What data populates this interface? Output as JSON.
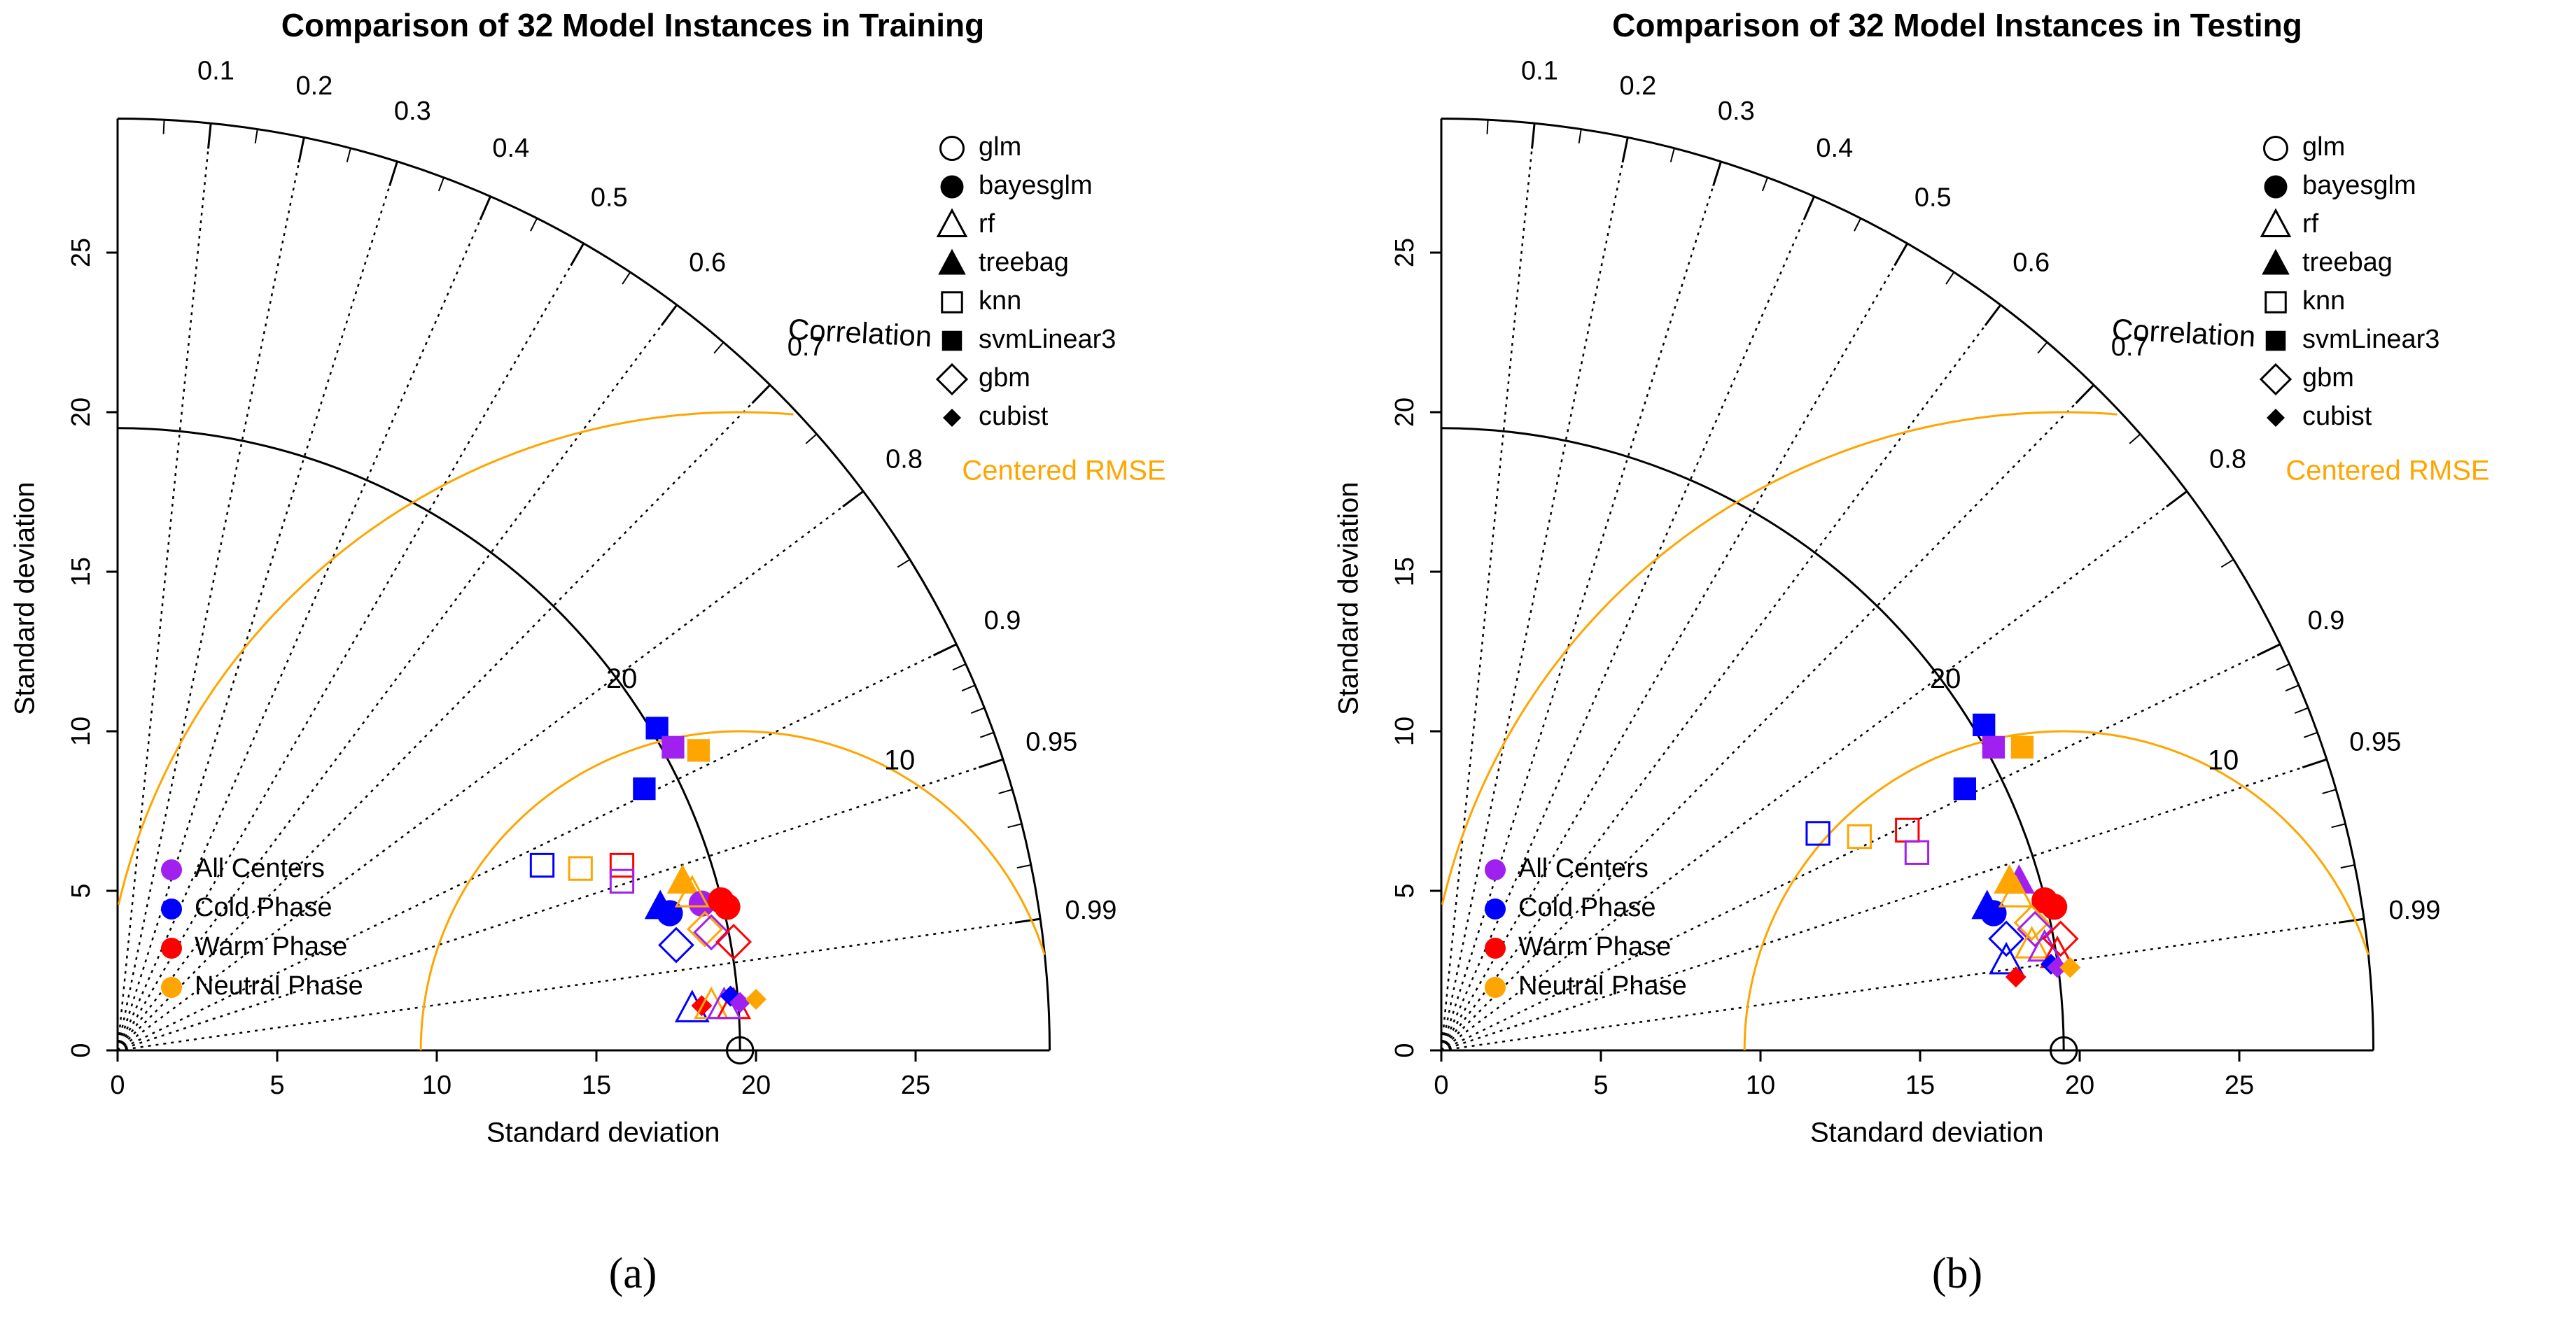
{
  "panel_labels": [
    "(a)",
    "(b)"
  ],
  "shape_legend": [
    {
      "label": "glm",
      "shape": "circle-open"
    },
    {
      "label": "bayesglm",
      "shape": "circle-filled"
    },
    {
      "label": "rf",
      "shape": "triangle-open"
    },
    {
      "label": "treebag",
      "shape": "triangle-filled"
    },
    {
      "label": "knn",
      "shape": "square-open"
    },
    {
      "label": "svmLinear3",
      "shape": "square-filled"
    },
    {
      "label": "gbm",
      "shape": "diamond-open"
    },
    {
      "label": "cubist",
      "shape": "diamond-filled-small"
    }
  ],
  "group_legend": [
    {
      "label": "All Centers",
      "color": "#A020F0"
    },
    {
      "label": "Cold Phase",
      "color": "#0000FF"
    },
    {
      "label": "Warm Phase",
      "color": "#FF0000"
    },
    {
      "label": "Neutral Phase",
      "color": "#FFA500"
    }
  ],
  "colors": {
    "All Centers": "#A020F0",
    "Cold Phase": "#0000FF",
    "Warm Phase": "#FF0000",
    "Neutral Phase": "#FFA500",
    "rmse": "#FFA500",
    "axis": "#000000"
  },
  "chart_data": [
    {
      "type": "scatter",
      "subtype": "taylor-diagram",
      "title": "Comparison of 32 Model Instances in Training",
      "xlabel": "Standard deviation",
      "ylabel": "Standard deviation",
      "correlation_label": "Correlation",
      "rmse_label": "Centered RMSE",
      "sd_max": 29.2,
      "reference_sd": 19.5,
      "x_ticks": [
        0,
        5,
        10,
        15,
        20,
        25
      ],
      "y_ticks": [
        0,
        5,
        10,
        15,
        20,
        25
      ],
      "correlation_ticks": [
        "0.1",
        "0.2",
        "0.3",
        "0.4",
        "0.5",
        "0.6",
        "0.7",
        "0.8",
        "0.9",
        "0.95",
        "0.99"
      ],
      "sd_arc_labels": [
        "20"
      ],
      "rmse_arc_labels": [
        "10"
      ],
      "points": [
        {
          "model": "glm",
          "group": "Reference",
          "x": 19.5,
          "y": 0.0
        },
        {
          "model": "svmLinear3",
          "group": "Cold Phase",
          "x": 16.9,
          "y": 10.1
        },
        {
          "model": "svmLinear3",
          "group": "All Centers",
          "x": 17.4,
          "y": 9.5
        },
        {
          "model": "svmLinear3",
          "group": "Neutral Phase",
          "x": 18.2,
          "y": 9.4
        },
        {
          "model": "svmLinear3",
          "group": "Cold Phase",
          "x": 16.5,
          "y": 8.2
        },
        {
          "model": "knn",
          "group": "Cold Phase",
          "x": 13.3,
          "y": 5.8
        },
        {
          "model": "knn",
          "group": "Neutral Phase",
          "x": 14.5,
          "y": 5.7
        },
        {
          "model": "knn",
          "group": "Warm Phase",
          "x": 15.8,
          "y": 5.8
        },
        {
          "model": "knn",
          "group": "All Centers",
          "x": 15.8,
          "y": 5.3
        },
        {
          "model": "treebag",
          "group": "Neutral Phase",
          "x": 17.7,
          "y": 5.3
        },
        {
          "model": "treebag",
          "group": "Cold Phase",
          "x": 17.0,
          "y": 4.5
        },
        {
          "model": "bayesglm",
          "group": "Cold Phase",
          "x": 17.3,
          "y": 4.3
        },
        {
          "model": "bayesglm",
          "group": "All Centers",
          "x": 18.3,
          "y": 4.6
        },
        {
          "model": "bayesglm",
          "group": "Warm Phase",
          "x": 18.9,
          "y": 4.7
        },
        {
          "model": "bayesglm",
          "group": "Warm Phase",
          "x": 19.1,
          "y": 4.5
        },
        {
          "model": "rf",
          "group": "Neutral Phase",
          "x": 18.0,
          "y": 4.9
        },
        {
          "model": "gbm",
          "group": "Neutral Phase",
          "x": 18.4,
          "y": 3.8
        },
        {
          "model": "gbm",
          "group": "All Centers",
          "x": 18.6,
          "y": 3.7
        },
        {
          "model": "gbm",
          "group": "Warm Phase",
          "x": 19.3,
          "y": 3.4
        },
        {
          "model": "gbm",
          "group": "Cold Phase",
          "x": 17.5,
          "y": 3.3
        },
        {
          "model": "rf",
          "group": "Cold Phase",
          "x": 18.0,
          "y": 1.3
        },
        {
          "model": "cubist",
          "group": "Warm Phase",
          "x": 18.3,
          "y": 1.4
        },
        {
          "model": "rf",
          "group": "Neutral Phase",
          "x": 18.6,
          "y": 1.4
        },
        {
          "model": "rf",
          "group": "Warm Phase",
          "x": 19.3,
          "y": 1.4
        },
        {
          "model": "rf",
          "group": "All Centers",
          "x": 19.0,
          "y": 1.4
        },
        {
          "model": "cubist",
          "group": "Cold Phase",
          "x": 19.2,
          "y": 1.7
        },
        {
          "model": "cubist",
          "group": "All Centers",
          "x": 19.5,
          "y": 1.5
        },
        {
          "model": "cubist",
          "group": "Neutral Phase",
          "x": 20.0,
          "y": 1.6
        }
      ]
    },
    {
      "type": "scatter",
      "subtype": "taylor-diagram",
      "title": "Comparison of 32 Model Instances in Testing",
      "xlabel": "Standard deviation",
      "ylabel": "Standard deviation",
      "correlation_label": "Correlation",
      "rmse_label": "Centered RMSE",
      "sd_max": 29.2,
      "reference_sd": 19.5,
      "x_ticks": [
        0,
        5,
        10,
        15,
        20,
        25
      ],
      "y_ticks": [
        0,
        5,
        10,
        15,
        20,
        25
      ],
      "correlation_ticks": [
        "0.1",
        "0.2",
        "0.3",
        "0.4",
        "0.5",
        "0.6",
        "0.7",
        "0.8",
        "0.9",
        "0.95",
        "0.99"
      ],
      "sd_arc_labels": [
        "20"
      ],
      "rmse_arc_labels": [
        "10"
      ],
      "points": [
        {
          "model": "glm",
          "group": "Reference",
          "x": 19.5,
          "y": 0.0
        },
        {
          "model": "svmLinear3",
          "group": "Cold Phase",
          "x": 17.0,
          "y": 10.2
        },
        {
          "model": "svmLinear3",
          "group": "All Centers",
          "x": 17.3,
          "y": 9.5
        },
        {
          "model": "svmLinear3",
          "group": "Neutral Phase",
          "x": 18.2,
          "y": 9.5
        },
        {
          "model": "svmLinear3",
          "group": "Cold Phase",
          "x": 16.4,
          "y": 8.2
        },
        {
          "model": "knn",
          "group": "Cold Phase",
          "x": 11.8,
          "y": 6.8
        },
        {
          "model": "knn",
          "group": "Neutral Phase",
          "x": 13.1,
          "y": 6.7
        },
        {
          "model": "knn",
          "group": "Warm Phase",
          "x": 14.6,
          "y": 6.9
        },
        {
          "model": "knn",
          "group": "All Centers",
          "x": 14.9,
          "y": 6.2
        },
        {
          "model": "treebag",
          "group": "All Centers",
          "x": 18.1,
          "y": 5.3
        },
        {
          "model": "treebag",
          "group": "Neutral Phase",
          "x": 17.8,
          "y": 5.3
        },
        {
          "model": "treebag",
          "group": "Cold Phase",
          "x": 17.1,
          "y": 4.5
        },
        {
          "model": "bayesglm",
          "group": "Cold Phase",
          "x": 17.3,
          "y": 4.3
        },
        {
          "model": "bayesglm",
          "group": "Warm Phase",
          "x": 18.9,
          "y": 4.7
        },
        {
          "model": "bayesglm",
          "group": "Warm Phase",
          "x": 19.2,
          "y": 4.5
        },
        {
          "model": "rf",
          "group": "Neutral Phase",
          "x": 18.0,
          "y": 4.9
        },
        {
          "model": "gbm",
          "group": "Neutral Phase",
          "x": 18.5,
          "y": 4.0
        },
        {
          "model": "gbm",
          "group": "All Centers",
          "x": 18.6,
          "y": 3.8
        },
        {
          "model": "gbm",
          "group": "Warm Phase",
          "x": 19.4,
          "y": 3.5
        },
        {
          "model": "gbm",
          "group": "Cold Phase",
          "x": 17.7,
          "y": 3.5
        },
        {
          "model": "rf",
          "group": "Cold Phase",
          "x": 17.7,
          "y": 2.8
        },
        {
          "model": "rf",
          "group": "Neutral Phase",
          "x": 18.5,
          "y": 3.3
        },
        {
          "model": "rf",
          "group": "All Centers",
          "x": 18.9,
          "y": 3.2
        },
        {
          "model": "rf",
          "group": "Warm Phase",
          "x": 19.3,
          "y": 3.0
        },
        {
          "model": "cubist",
          "group": "Warm Phase",
          "x": 18.0,
          "y": 2.3
        },
        {
          "model": "cubist",
          "group": "Cold Phase",
          "x": 19.1,
          "y": 2.7
        },
        {
          "model": "cubist",
          "group": "All Centers",
          "x": 19.3,
          "y": 2.6
        },
        {
          "model": "cubist",
          "group": "Neutral Phase",
          "x": 19.7,
          "y": 2.6
        }
      ]
    }
  ]
}
